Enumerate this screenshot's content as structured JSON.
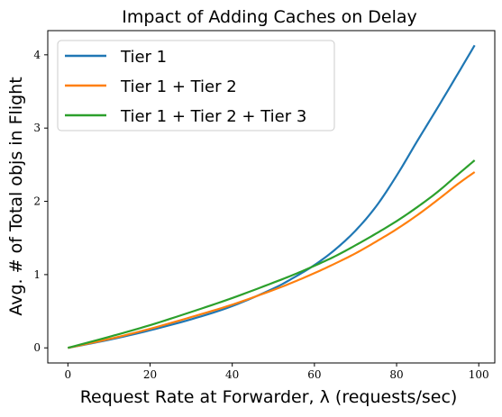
{
  "chart_data": {
    "type": "line",
    "title": "Impact of Adding Caches on Delay",
    "xlabel": "Request Rate at Forwarder, λ (requests/sec)",
    "ylabel": "Avg. # of Total objs in Flight",
    "xlim": [
      -4.9,
      103.9
    ],
    "ylim": [
      -0.206,
      4.33
    ],
    "xticks": [
      0,
      20,
      40,
      60,
      80,
      100
    ],
    "yticks": [
      0,
      1,
      2,
      3,
      4
    ],
    "grid": false,
    "legend_position": "top-left",
    "x": [
      0,
      10,
      20,
      30,
      40,
      50,
      55,
      60,
      65,
      70,
      75,
      80,
      85,
      90,
      95,
      99
    ],
    "series": [
      {
        "name": "Tier 1",
        "color": "#1f77b4",
        "values": [
          0.0,
          0.11,
          0.24,
          0.39,
          0.57,
          0.81,
          0.96,
          1.13,
          1.34,
          1.6,
          1.93,
          2.35,
          2.82,
          3.28,
          3.75,
          4.13
        ]
      },
      {
        "name": "Tier 1 + Tier 2",
        "color": "#ff7f0e",
        "values": [
          0.0,
          0.12,
          0.26,
          0.42,
          0.59,
          0.79,
          0.9,
          1.02,
          1.15,
          1.29,
          1.45,
          1.62,
          1.81,
          2.02,
          2.24,
          2.4
        ]
      },
      {
        "name": "Tier 1 + Tier 2 + Tier 3",
        "color": "#2ca02c",
        "values": [
          0.0,
          0.15,
          0.31,
          0.49,
          0.68,
          0.89,
          1.0,
          1.12,
          1.25,
          1.4,
          1.56,
          1.73,
          1.92,
          2.13,
          2.37,
          2.56
        ]
      }
    ]
  }
}
